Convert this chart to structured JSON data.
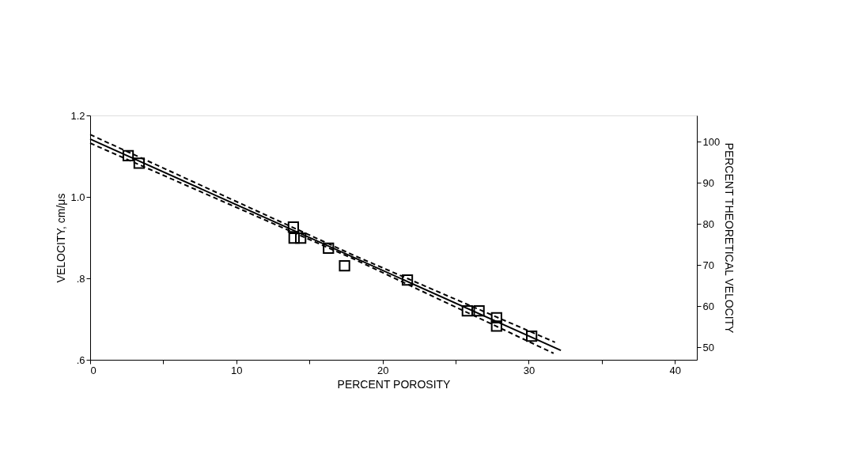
{
  "chart_data": {
    "type": "scatter",
    "xlabel": "PERCENT POROSITY",
    "ylabel": "VELOCITY, cm/μs",
    "y2label": "PERCENT THEORETICAL VELOCITY",
    "xlim": [
      0,
      41.5
    ],
    "ylim": [
      0.6,
      1.2
    ],
    "y2lim": [
      47,
      106.4
    ],
    "xticks": [
      0,
      {
        "value": 5,
        "label": null
      },
      10,
      {
        "value": 15,
        "label": null
      },
      20,
      {
        "value": 25,
        "label": null
      },
      30,
      {
        "value": 35,
        "label": null
      },
      40
    ],
    "yticks": [
      {
        "value": 0.6,
        "label": ".6"
      },
      {
        "value": 0.8,
        "label": ".8"
      },
      {
        "value": 1.0,
        "label": "1.0"
      },
      {
        "value": 1.2,
        "label": "1.2"
      }
    ],
    "y2ticks": [
      50,
      60,
      70,
      80,
      90,
      100
    ],
    "grid": false,
    "series": [
      {
        "marker": "square",
        "color": "#000000",
        "x": [
          2.6,
          3.35,
          13.9,
          13.95,
          14.4,
          16.3,
          17.4,
          21.7,
          25.8,
          26.6,
          27.8,
          27.8,
          30.2
        ],
        "values": [
          1.101,
          1.083,
          0.926,
          0.899,
          0.899,
          0.874,
          0.831,
          0.796,
          0.72,
          0.72,
          0.703,
          0.683,
          0.658
        ]
      },
      {
        "type": "line",
        "line_style": "solid",
        "color": "#000000",
        "x": [
          0,
          32.2
        ],
        "values": [
          1.142,
          0.623
        ]
      },
      {
        "type": "line",
        "line_style": "dashed",
        "color": "#000000",
        "x": [
          0,
          18,
          31.8
        ],
        "values": [
          1.153,
          0.857,
          0.643
        ]
      },
      {
        "type": "line",
        "line_style": "dashed",
        "color": "#000000",
        "x": [
          0,
          18,
          31.7
        ],
        "values": [
          1.132,
          0.848,
          0.616
        ]
      }
    ]
  }
}
